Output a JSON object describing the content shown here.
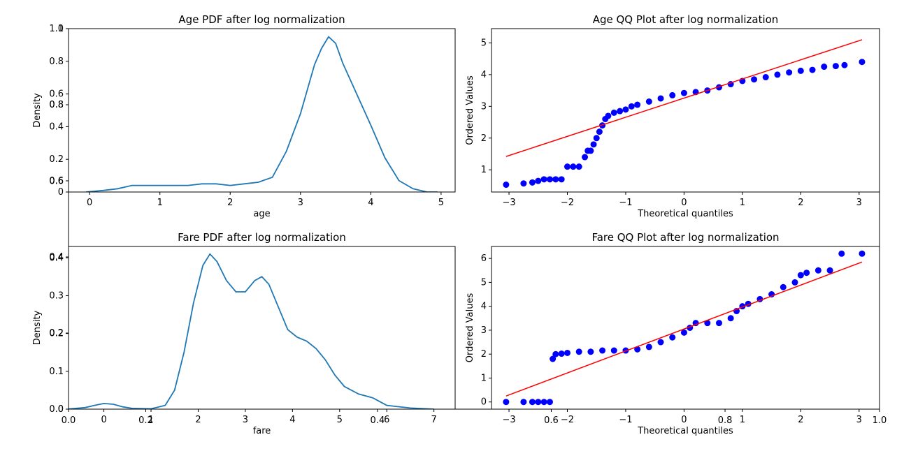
{
  "chart_data": [
    {
      "type": "line",
      "title": "Age PDF after log normalization",
      "xlabel": "age",
      "ylabel": "Density",
      "xlim": [
        -0.3,
        5.2
      ],
      "ylim": [
        0,
        1.0
      ],
      "xticks": [
        0,
        1,
        2,
        3,
        4,
        5
      ],
      "yticks": [
        0.0,
        0.2,
        0.4,
        0.6,
        0.8,
        1.0
      ],
      "ghost_yticks": [
        "0.0",
        "0.2",
        "0.4",
        "0.6",
        "0.8",
        "1.0"
      ],
      "ghost_yticks_frac": [
        0.0,
        0.2,
        0.4,
        0.6,
        0.8,
        1.0
      ],
      "extra_ytick_labels": [
        {
          "label": "0.6",
          "frac": 0.067
        },
        {
          "label": "0.8",
          "frac": 0.534
        }
      ],
      "color": "#1f77b4",
      "x": [
        -0.05,
        0.2,
        0.4,
        0.6,
        0.8,
        1.0,
        1.2,
        1.4,
        1.6,
        1.8,
        2.0,
        2.2,
        2.4,
        2.6,
        2.8,
        3.0,
        3.2,
        3.3,
        3.4,
        3.5,
        3.6,
        3.8,
        4.0,
        4.2,
        4.4,
        4.6,
        4.8,
        4.95
      ],
      "y": [
        0.0,
        0.01,
        0.02,
        0.04,
        0.04,
        0.04,
        0.04,
        0.04,
        0.05,
        0.05,
        0.04,
        0.05,
        0.06,
        0.09,
        0.25,
        0.48,
        0.78,
        0.88,
        0.95,
        0.91,
        0.79,
        0.6,
        0.41,
        0.21,
        0.07,
        0.02,
        0.0,
        0.0
      ]
    },
    {
      "type": "scatter",
      "title": "Age QQ Plot after log normalization",
      "xlabel": "Theoretical quantiles",
      "ylabel": "Ordered Values",
      "xlim": [
        -3.3,
        3.35
      ],
      "ylim": [
        0.3,
        5.45
      ],
      "xticks": [
        -3,
        -2,
        -1,
        0,
        1,
        2,
        3
      ],
      "yticks": [
        1,
        2,
        3,
        4,
        5
      ],
      "point_color": "#0000ff",
      "fit_line": {
        "color": "#ff0000",
        "x": [
          -3.05,
          3.05
        ],
        "y": [
          1.42,
          5.1
        ]
      },
      "x": [
        -3.05,
        -2.75,
        -2.6,
        -2.5,
        -2.4,
        -2.3,
        -2.2,
        -2.1,
        -2.0,
        -1.9,
        -1.8,
        -1.7,
        -1.65,
        -1.6,
        -1.55,
        -1.5,
        -1.45,
        -1.4,
        -1.35,
        -1.3,
        -1.2,
        -1.1,
        -1.0,
        -0.9,
        -0.8,
        -0.6,
        -0.4,
        -0.2,
        0.0,
        0.2,
        0.4,
        0.6,
        0.8,
        1.0,
        1.2,
        1.4,
        1.6,
        1.8,
        2.0,
        2.2,
        2.4,
        2.6,
        2.75,
        3.05
      ],
      "y": [
        0.53,
        0.57,
        0.6,
        0.65,
        0.7,
        0.7,
        0.7,
        0.7,
        1.1,
        1.1,
        1.1,
        1.4,
        1.6,
        1.6,
        1.8,
        2.0,
        2.2,
        2.4,
        2.6,
        2.7,
        2.8,
        2.85,
        2.9,
        3.0,
        3.05,
        3.15,
        3.25,
        3.35,
        3.42,
        3.45,
        3.5,
        3.6,
        3.7,
        3.8,
        3.85,
        3.92,
        4.0,
        4.07,
        4.12,
        4.15,
        4.25,
        4.27,
        4.3,
        4.4
      ]
    },
    {
      "type": "line",
      "title": "Fare PDF after log normalization",
      "xlabel": "fare",
      "ylabel": "Density",
      "xlim": [
        -0.75,
        7.45
      ],
      "ylim": [
        0,
        0.43
      ],
      "xticks": [
        0,
        1,
        2,
        3,
        4,
        5,
        6,
        7
      ],
      "yticks": [
        0.0,
        0.1,
        0.2,
        0.3,
        0.4
      ],
      "ghost_yticks": [
        "0.0",
        "0.2",
        "0.4",
        "0.6",
        "0.8",
        "1.0"
      ],
      "ghost_yticks_frac": [
        0.0,
        0.2,
        0.4,
        0.6,
        0.8,
        1.0
      ],
      "extra_ytick_labels": [],
      "ghost_xticks": [
        {
          "label": "0.0",
          "frac": 0.0
        },
        {
          "label": "0.2",
          "frac": 0.2
        },
        {
          "label": "0.4",
          "frac": 0.8
        },
        {
          "label": "0.6",
          "frac": 1.25
        },
        {
          "label": "0.8",
          "frac": 1.7
        },
        {
          "label": "1.0",
          "frac": 2.1
        }
      ],
      "color": "#1f77b4",
      "x": [
        -0.8,
        -0.4,
        -0.2,
        0.0,
        0.2,
        0.4,
        0.6,
        1.0,
        1.3,
        1.5,
        1.7,
        1.9,
        2.1,
        2.25,
        2.4,
        2.6,
        2.8,
        3.0,
        3.2,
        3.35,
        3.5,
        3.7,
        3.9,
        4.1,
        4.3,
        4.5,
        4.7,
        4.9,
        5.1,
        5.4,
        5.7,
        6.0,
        6.5,
        7.0
      ],
      "y": [
        0.0,
        0.004,
        0.01,
        0.015,
        0.013,
        0.006,
        0.002,
        0.001,
        0.01,
        0.05,
        0.15,
        0.28,
        0.38,
        0.41,
        0.39,
        0.34,
        0.31,
        0.31,
        0.34,
        0.35,
        0.33,
        0.27,
        0.21,
        0.19,
        0.18,
        0.16,
        0.13,
        0.09,
        0.06,
        0.04,
        0.03,
        0.01,
        0.003,
        0.0
      ]
    },
    {
      "type": "scatter",
      "title": "Fare QQ Plot after log normalization",
      "xlabel": "Theoretical quantiles",
      "ylabel": "Ordered Values",
      "xlim": [
        -3.3,
        3.35
      ],
      "ylim": [
        -0.3,
        6.5
      ],
      "xticks": [
        -3,
        -2,
        -1,
        0,
        1,
        2,
        3
      ],
      "yticks": [
        0,
        1,
        2,
        3,
        4,
        5,
        6
      ],
      "point_color": "#0000ff",
      "fit_line": {
        "color": "#ff0000",
        "x": [
          -3.05,
          3.05
        ],
        "y": [
          0.25,
          5.85
        ]
      },
      "x": [
        -3.05,
        -2.75,
        -2.6,
        -2.5,
        -2.4,
        -2.3,
        -2.25,
        -2.2,
        -2.1,
        -2.0,
        -1.8,
        -1.6,
        -1.4,
        -1.2,
        -1.0,
        -0.8,
        -0.6,
        -0.4,
        -0.2,
        0.0,
        0.1,
        0.2,
        0.4,
        0.6,
        0.8,
        0.9,
        1.0,
        1.1,
        1.3,
        1.5,
        1.7,
        1.9,
        2.0,
        2.1,
        2.3,
        2.5,
        2.7,
        3.05
      ],
      "y": [
        0.0,
        0.0,
        0.0,
        0.0,
        0.0,
        0.0,
        1.8,
        2.0,
        2.02,
        2.05,
        2.1,
        2.1,
        2.15,
        2.15,
        2.15,
        2.2,
        2.3,
        2.5,
        2.7,
        2.9,
        3.1,
        3.3,
        3.3,
        3.3,
        3.5,
        3.8,
        4.0,
        4.1,
        4.3,
        4.5,
        4.8,
        5.0,
        5.3,
        5.4,
        5.5,
        5.5,
        6.2,
        6.2
      ]
    }
  ]
}
